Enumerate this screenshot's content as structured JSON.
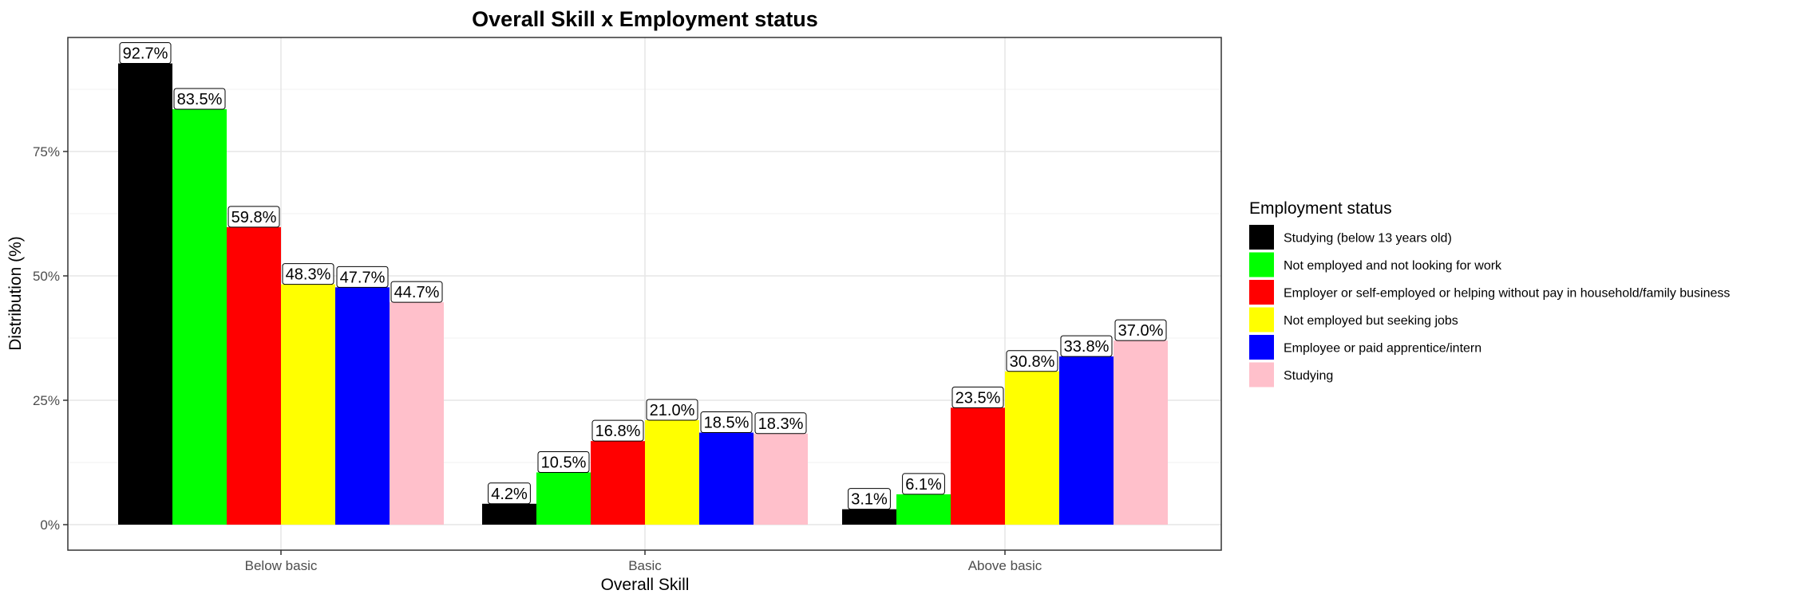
{
  "chart_data": {
    "type": "bar",
    "title": "Overall Skill x Employment status",
    "xlabel": "Overall Skill",
    "ylabel": "Distribution (%)",
    "categories": [
      "Below basic",
      "Basic",
      "Above basic"
    ],
    "ylim": [
      0,
      0.95
    ],
    "yticks": [
      {
        "value": 0,
        "label": "0%"
      },
      {
        "value": 0.25,
        "label": "25%"
      },
      {
        "value": 0.5,
        "label": "50%"
      },
      {
        "value": 0.75,
        "label": "75%"
      }
    ],
    "grid": true,
    "legend": {
      "title": "Employment status",
      "position": "right"
    },
    "series": [
      {
        "name": "Studying (below 13 years old)",
        "color": "#000000",
        "values": [
          0.927,
          0.042,
          0.031
        ],
        "labels": [
          "92.7%",
          "4.2%",
          "3.1%"
        ]
      },
      {
        "name": "Not employed and not looking for work",
        "color": "#00ff00",
        "values": [
          0.835,
          0.105,
          0.061
        ],
        "labels": [
          "83.5%",
          "10.5%",
          "6.1%"
        ]
      },
      {
        "name": "Employer or self-employed or helping without pay in household/family business",
        "color": "#ff0000",
        "values": [
          0.598,
          0.168,
          0.235
        ],
        "labels": [
          "59.8%",
          "16.8%",
          "23.5%"
        ]
      },
      {
        "name": "Not employed but seeking jobs",
        "color": "#ffff00",
        "values": [
          0.483,
          0.21,
          0.308
        ],
        "labels": [
          "48.3%",
          "21.0%",
          "30.8%"
        ]
      },
      {
        "name": "Employee or paid apprentice/intern",
        "color": "#0000ff",
        "values": [
          0.477,
          0.185,
          0.338
        ],
        "labels": [
          "47.7%",
          "18.5%",
          "33.8%"
        ]
      },
      {
        "name": "Studying",
        "color": "#ffc0cb",
        "values": [
          0.447,
          0.183,
          0.37
        ],
        "labels": [
          "44.7%",
          "18.3%",
          "37.0%"
        ]
      }
    ]
  }
}
